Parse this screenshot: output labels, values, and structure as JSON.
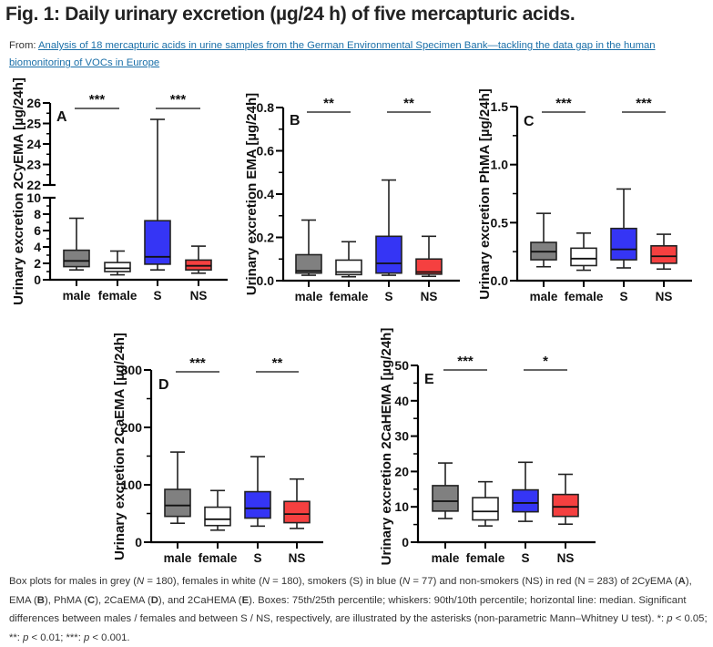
{
  "figure": {
    "title": "Fig. 1: Daily urinary excretion (µg/24 h) of five mercapturic acids.",
    "source_prefix": "From: ",
    "source_link": "Analysis of 18 mercapturic acids in urine samples from the German Environmental Specimen Bank—tackling the data gap in the human biomonitoring of VOCs in Europe",
    "caption_parts": [
      {
        "t": "Box plots for males in grey (",
        "s": ""
      },
      {
        "t": "N",
        "s": "i"
      },
      {
        "t": " = 180), females in white (",
        "s": ""
      },
      {
        "t": "N",
        "s": "i"
      },
      {
        "t": " = 180), smokers (S) in blue (",
        "s": ""
      },
      {
        "t": "N",
        "s": "i"
      },
      {
        "t": " = 77) and non-smokers (NS) in red (N = 283) of 2CyEMA (",
        "s": ""
      },
      {
        "t": "A",
        "s": "b"
      },
      {
        "t": "), EMA (",
        "s": ""
      },
      {
        "t": "B",
        "s": "b"
      },
      {
        "t": "), PhMA (",
        "s": ""
      },
      {
        "t": "C",
        "s": "b"
      },
      {
        "t": "), 2CaEMA (",
        "s": ""
      },
      {
        "t": "D",
        "s": "b"
      },
      {
        "t": "), and 2CaHEMA (",
        "s": ""
      },
      {
        "t": "E",
        "s": "b"
      },
      {
        "t": "). Boxes: 75th/25th percentile; whiskers: 90th/10th percentile; horizontal line: median. Significant differences between males / females and between S / NS, respectively, are illustrated by the asterisks (non-parametric Mann–Whitney U test). *: ",
        "s": ""
      },
      {
        "t": "p",
        "s": "i"
      },
      {
        "t": " < 0.05; **: ",
        "s": ""
      },
      {
        "t": "p",
        "s": "i"
      },
      {
        "t": " < 0.01; ***: ",
        "s": ""
      },
      {
        "t": "p",
        "s": "i"
      },
      {
        "t": " < 0.001.",
        "s": ""
      }
    ]
  },
  "colors": {
    "male": "#808080",
    "female": "#ffffff",
    "S": "#3535f5",
    "NS": "#f54040",
    "link": "#1a6fa8"
  },
  "chart_data": [
    {
      "type": "box",
      "panel": "A",
      "title": "",
      "ylabel": "Urinary excretion 2CyEMA [µg/24h]",
      "categories": [
        "male",
        "female",
        "S",
        "NS"
      ],
      "y_axis_break": true,
      "ylim_lower": [
        0,
        10
      ],
      "ylim_upper": [
        22,
        26
      ],
      "yticks_lower": [
        0,
        2,
        4,
        6,
        8,
        10
      ],
      "yticks_upper": [
        22,
        23,
        24,
        25,
        26
      ],
      "grid": false,
      "boxes": [
        {
          "category": "male",
          "p10": 1.2,
          "p25": 1.6,
          "median": 2.3,
          "p75": 3.6,
          "p90": 7.5
        },
        {
          "category": "female",
          "p10": 0.6,
          "p25": 1.0,
          "median": 1.4,
          "p75": 2.1,
          "p90": 3.5
        },
        {
          "category": "S",
          "p10": 1.2,
          "p25": 1.9,
          "median": 2.8,
          "p75": 7.2,
          "p90": 25.2
        },
        {
          "category": "NS",
          "p10": 0.8,
          "p25": 1.2,
          "median": 1.7,
          "p75": 2.4,
          "p90": 4.1
        }
      ],
      "significance": [
        {
          "between": [
            "male",
            "female"
          ],
          "label": "***"
        },
        {
          "between": [
            "S",
            "NS"
          ],
          "label": "***"
        }
      ]
    },
    {
      "type": "box",
      "panel": "B",
      "title": "",
      "ylabel": "Urinary excretion EMA [µg/24h]",
      "categories": [
        "male",
        "female",
        "S",
        "NS"
      ],
      "ylim": [
        0,
        0.8
      ],
      "yticks": [
        "0.0",
        "0.2",
        "0.4",
        "0.6",
        "0.8"
      ],
      "grid": false,
      "boxes": [
        {
          "category": "male",
          "p10": 0.025,
          "p25": 0.035,
          "median": 0.045,
          "p75": 0.12,
          "p90": 0.28
        },
        {
          "category": "female",
          "p10": 0.018,
          "p25": 0.028,
          "median": 0.04,
          "p75": 0.095,
          "p90": 0.18
        },
        {
          "category": "S",
          "p10": 0.025,
          "p25": 0.035,
          "median": 0.08,
          "p75": 0.205,
          "p90": 0.465
        },
        {
          "category": "NS",
          "p10": 0.02,
          "p25": 0.03,
          "median": 0.04,
          "p75": 0.1,
          "p90": 0.205
        }
      ],
      "significance": [
        {
          "between": [
            "male",
            "female"
          ],
          "label": "**"
        },
        {
          "between": [
            "S",
            "NS"
          ],
          "label": "**"
        }
      ]
    },
    {
      "type": "box",
      "panel": "C",
      "title": "",
      "ylabel": "Urinary excretion PhMA [µg/24h]",
      "categories": [
        "male",
        "female",
        "S",
        "NS"
      ],
      "ylim": [
        0,
        1.5
      ],
      "yticks": [
        "0.0",
        "0.5",
        "1.0",
        "1.5"
      ],
      "grid": false,
      "boxes": [
        {
          "category": "male",
          "p10": 0.12,
          "p25": 0.18,
          "median": 0.25,
          "p75": 0.33,
          "p90": 0.58
        },
        {
          "category": "female",
          "p10": 0.09,
          "p25": 0.13,
          "median": 0.19,
          "p75": 0.28,
          "p90": 0.41
        },
        {
          "category": "S",
          "p10": 0.11,
          "p25": 0.18,
          "median": 0.27,
          "p75": 0.45,
          "p90": 0.79
        },
        {
          "category": "NS",
          "p10": 0.1,
          "p25": 0.15,
          "median": 0.21,
          "p75": 0.3,
          "p90": 0.4
        }
      ],
      "significance": [
        {
          "between": [
            "male",
            "female"
          ],
          "label": "***"
        },
        {
          "between": [
            "S",
            "NS"
          ],
          "label": "***"
        }
      ]
    },
    {
      "type": "box",
      "panel": "D",
      "title": "",
      "ylabel": "Urinary excretion 2CaEMA [µg/24h]",
      "categories": [
        "male",
        "female",
        "S",
        "NS"
      ],
      "ylim": [
        0,
        300
      ],
      "yticks": [
        "0",
        "100",
        "200",
        "300"
      ],
      "grid": false,
      "boxes": [
        {
          "category": "male",
          "p10": 33,
          "p25": 45,
          "median": 64,
          "p75": 92,
          "p90": 157
        },
        {
          "category": "female",
          "p10": 21,
          "p25": 29,
          "median": 40,
          "p75": 61,
          "p90": 90
        },
        {
          "category": "S",
          "p10": 28,
          "p25": 42,
          "median": 59,
          "p75": 88,
          "p90": 149
        },
        {
          "category": "NS",
          "p10": 24,
          "p25": 34,
          "median": 49,
          "p75": 71,
          "p90": 110
        }
      ],
      "significance": [
        {
          "between": [
            "male",
            "female"
          ],
          "label": "***"
        },
        {
          "between": [
            "S",
            "NS"
          ],
          "label": "**"
        }
      ]
    },
    {
      "type": "box",
      "panel": "E",
      "title": "",
      "ylabel": "Urinary excretion 2CaHEMA [µg/24h]",
      "categories": [
        "male",
        "female",
        "S",
        "NS"
      ],
      "ylim": [
        0,
        50
      ],
      "yticks": [
        "0",
        "10",
        "20",
        "30",
        "40",
        "50"
      ],
      "grid": false,
      "boxes": [
        {
          "category": "male",
          "p10": 6.7,
          "p25": 8.8,
          "median": 11.6,
          "p75": 16.0,
          "p90": 22.4
        },
        {
          "category": "female",
          "p10": 4.6,
          "p25": 6.3,
          "median": 8.7,
          "p75": 12.6,
          "p90": 17.1
        },
        {
          "category": "S",
          "p10": 5.9,
          "p25": 8.6,
          "median": 11.1,
          "p75": 14.8,
          "p90": 22.6
        },
        {
          "category": "NS",
          "p10": 5.1,
          "p25": 7.3,
          "median": 10.0,
          "p75": 13.5,
          "p90": 19.2
        }
      ],
      "significance": [
        {
          "between": [
            "male",
            "female"
          ],
          "label": "***"
        },
        {
          "between": [
            "S",
            "NS"
          ],
          "label": "*"
        }
      ]
    }
  ]
}
